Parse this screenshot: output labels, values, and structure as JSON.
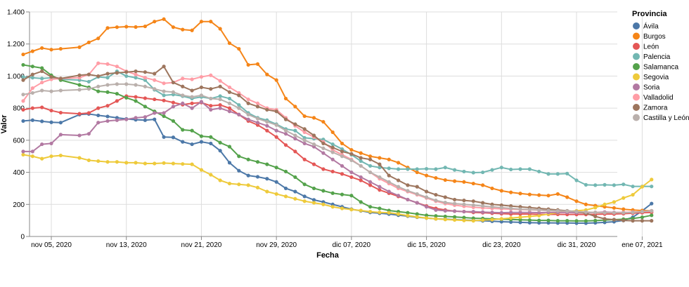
{
  "chart_data": {
    "type": "line",
    "title": "",
    "xlabel": "Fecha",
    "ylabel": "Valor",
    "legend_title": "Provincia",
    "legend_position": "right",
    "ylim": [
      0,
      1400
    ],
    "yticks": [
      0,
      200,
      400,
      600,
      800,
      1000,
      1200,
      1400
    ],
    "ytick_labels": [
      "0",
      "200",
      "400",
      "600",
      "800",
      "1.000",
      "1.200",
      "1.400"
    ],
    "x_start_day": 0,
    "x_end_day": 67,
    "x_ticks": [
      {
        "day": 0,
        "label": "nov 05, 2020"
      },
      {
        "day": 8,
        "label": "nov 13, 2020"
      },
      {
        "day": 16,
        "label": "nov 21, 2020"
      },
      {
        "day": 24,
        "label": "nov 29, 2020"
      },
      {
        "day": 32,
        "label": "dic 07, 2020"
      },
      {
        "day": 40,
        "label": "dic 15, 2020"
      },
      {
        "day": 48,
        "label": "dic 23, 2020"
      },
      {
        "day": 56,
        "label": "dic 31, 2020"
      },
      {
        "day": 63,
        "label": "ene 07, 2021"
      }
    ],
    "x_days": [
      -3,
      -2,
      -1,
      0,
      1,
      3,
      4,
      5,
      6,
      7,
      8,
      9,
      10,
      11,
      12,
      13,
      14,
      15,
      16,
      17,
      18,
      19,
      20,
      21,
      22,
      23,
      24,
      25,
      26,
      27,
      28,
      29,
      30,
      31,
      32,
      33,
      34,
      35,
      36,
      37,
      38,
      39,
      40,
      41,
      42,
      43,
      44,
      45,
      46,
      47,
      48,
      49,
      50,
      51,
      52,
      53,
      54,
      55,
      56,
      57,
      58,
      59,
      60,
      61,
      62,
      63,
      64
    ],
    "series": [
      {
        "name": "Ávila",
        "color": "#4c78a8",
        "values": [
          720,
          725,
          718,
          712,
          710,
          760,
          764,
          755,
          748,
          740,
          733,
          728,
          725,
          730,
          620,
          618,
          590,
          575,
          590,
          580,
          535,
          460,
          410,
          380,
          372,
          360,
          340,
          300,
          280,
          250,
          228,
          215,
          200,
          185,
          170,
          160,
          150,
          145,
          140,
          133,
          127,
          120,
          115,
          110,
          108,
          105,
          102,
          100,
          98,
          95,
          92,
          90,
          88,
          86,
          85,
          85,
          84,
          84,
          83,
          83,
          85,
          88,
          92,
          100,
          120,
          160,
          205
        ]
      },
      {
        "name": "Burgos",
        "color": "#f58518",
        "values": [
          1135,
          1155,
          1175,
          1165,
          1170,
          1180,
          1210,
          1235,
          1300,
          1305,
          1308,
          1306,
          1310,
          1340,
          1355,
          1305,
          1290,
          1285,
          1340,
          1340,
          1295,
          1205,
          1170,
          1070,
          1075,
          1010,
          975,
          860,
          810,
          750,
          740,
          715,
          650,
          580,
          540,
          520,
          500,
          490,
          480,
          460,
          430,
          400,
          380,
          365,
          352,
          345,
          340,
          330,
          320,
          300,
          285,
          275,
          268,
          262,
          258,
          255,
          265,
          245,
          220,
          200,
          192,
          185,
          178,
          170,
          165,
          162,
          160
        ]
      },
      {
        "name": "León",
        "color": "#e45756",
        "values": [
          790,
          800,
          805,
          785,
          772,
          765,
          770,
          800,
          815,
          845,
          875,
          870,
          862,
          855,
          848,
          835,
          822,
          830,
          835,
          815,
          820,
          800,
          760,
          720,
          695,
          660,
          620,
          570,
          530,
          480,
          450,
          420,
          405,
          390,
          370,
          350,
          320,
          290,
          270,
          250,
          230,
          210,
          190,
          175,
          165,
          158,
          155,
          150,
          148,
          145,
          142,
          140,
          140,
          140,
          138,
          138,
          138,
          137,
          137,
          137,
          138,
          140,
          140,
          142,
          145,
          148,
          150
        ]
      },
      {
        "name": "Palencia",
        "color": "#72b7b2",
        "values": [
          995,
          990,
          985,
          990,
          980,
          975,
          965,
          995,
          990,
          1030,
          1000,
          990,
          975,
          915,
          880,
          885,
          875,
          860,
          870,
          860,
          875,
          860,
          820,
          770,
          740,
          725,
          700,
          670,
          660,
          615,
          610,
          605,
          575,
          545,
          510,
          470,
          440,
          430,
          425,
          420,
          420,
          420,
          422,
          420,
          430,
          415,
          405,
          398,
          400,
          415,
          430,
          418,
          420,
          420,
          405,
          390,
          390,
          392,
          350,
          322,
          320,
          322,
          320,
          325,
          312,
          312,
          312
        ]
      },
      {
        "name": "Salamanca",
        "color": "#54a24b",
        "values": [
          1070,
          1060,
          1050,
          1005,
          975,
          945,
          930,
          905,
          900,
          890,
          865,
          845,
          810,
          780,
          750,
          720,
          665,
          660,
          625,
          620,
          585,
          560,
          500,
          480,
          465,
          450,
          430,
          405,
          370,
          325,
          300,
          285,
          270,
          262,
          255,
          215,
          185,
          175,
          162,
          155,
          148,
          140,
          132,
          128,
          125,
          122,
          118,
          114,
          112,
          110,
          108,
          106,
          104,
          102,
          100,
          100,
          98,
          98,
          97,
          97,
          99,
          102,
          105,
          108,
          112,
          120,
          132
        ]
      },
      {
        "name": "Segovia",
        "color": "#eeca3b",
        "values": [
          510,
          500,
          485,
          500,
          505,
          490,
          475,
          470,
          465,
          465,
          460,
          460,
          455,
          455,
          458,
          455,
          452,
          450,
          415,
          385,
          350,
          330,
          325,
          320,
          305,
          280,
          265,
          250,
          235,
          220,
          210,
          200,
          185,
          175,
          168,
          162,
          155,
          150,
          148,
          140,
          130,
          122,
          115,
          110,
          106,
          103,
          100,
          98,
          102,
          105,
          110,
          115,
          120,
          125,
          130,
          140,
          148,
          155,
          160,
          165,
          180,
          200,
          215,
          240,
          260,
          310,
          355
        ]
      },
      {
        "name": "Soria",
        "color": "#b279a2",
        "values": [
          530,
          530,
          575,
          580,
          635,
          630,
          640,
          710,
          720,
          725,
          730,
          740,
          745,
          770,
          770,
          810,
          830,
          800,
          840,
          790,
          800,
          780,
          760,
          730,
          710,
          690,
          660,
          640,
          610,
          580,
          560,
          520,
          480,
          440,
          400,
          370,
          340,
          310,
          280,
          255,
          230,
          210,
          185,
          165,
          160,
          158,
          155,
          155,
          152,
          150,
          148,
          150,
          150,
          150,
          148,
          150,
          150,
          150,
          148,
          148,
          150,
          152,
          150,
          150,
          152,
          155,
          160
        ]
      },
      {
        "name": "Valladolid",
        "color": "#ff9da6",
        "values": [
          845,
          925,
          960,
          980,
          985,
          990,
          1010,
          1080,
          1075,
          1060,
          1030,
          1010,
          990,
          975,
          955,
          960,
          985,
          980,
          995,
          1005,
          970,
          930,
          895,
          855,
          830,
          800,
          790,
          740,
          690,
          650,
          620,
          590,
          540,
          510,
          480,
          440,
          400,
          360,
          330,
          300,
          280,
          260,
          240,
          220,
          205,
          195,
          188,
          182,
          178,
          175,
          172,
          170,
          168,
          166,
          164,
          162,
          160,
          158,
          155,
          152,
          150,
          148,
          148,
          150,
          152,
          155,
          158
        ]
      },
      {
        "name": "Zamora",
        "color": "#9d755d",
        "values": [
          975,
          1010,
          1030,
          995,
          985,
          1005,
          1010,
          1000,
          1015,
          1020,
          1025,
          1030,
          1025,
          1015,
          1060,
          960,
          935,
          910,
          930,
          920,
          935,
          900,
          880,
          830,
          810,
          790,
          780,
          730,
          700,
          670,
          630,
          580,
          555,
          530,
          515,
          490,
          480,
          450,
          380,
          350,
          320,
          310,
          280,
          260,
          245,
          230,
          225,
          220,
          210,
          200,
          195,
          190,
          185,
          180,
          175,
          170,
          165,
          160,
          155,
          145,
          125,
          110,
          105,
          100,
          98,
          98,
          98
        ]
      },
      {
        "name": "Castilla y León",
        "color": "#bab0ac",
        "values": [
          885,
          895,
          910,
          905,
          910,
          915,
          920,
          935,
          945,
          950,
          950,
          945,
          935,
          920,
          905,
          900,
          880,
          870,
          880,
          860,
          855,
          830,
          800,
          760,
          735,
          715,
          695,
          660,
          630,
          600,
          575,
          550,
          525,
          500,
          475,
          440,
          400,
          370,
          340,
          310,
          285,
          265,
          245,
          225,
          212,
          205,
          200,
          195,
          190,
          185,
          180,
          175,
          170,
          168,
          165,
          162,
          160,
          158,
          155,
          152,
          150,
          148,
          148,
          148,
          150,
          155,
          160
        ]
      }
    ]
  }
}
